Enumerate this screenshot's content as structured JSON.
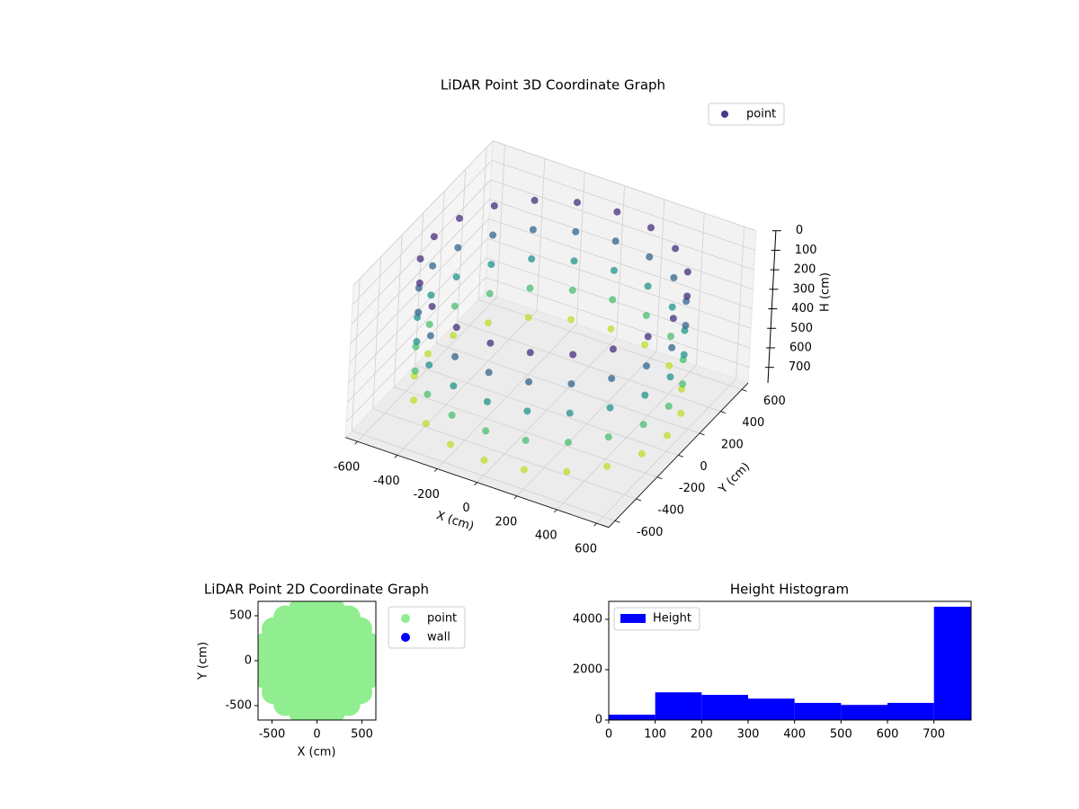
{
  "chart_data": [
    {
      "type": "scatter3d",
      "title": "LiDAR Point 3D Coordinate Graph",
      "xlabel": "X (cm)",
      "ylabel": "Y (cm)",
      "zlabel": "H (cm)",
      "colormap": "viridis",
      "legend": "upper right",
      "xlim": [
        -660,
        660
      ],
      "ylim": [
        -660,
        660
      ],
      "zlim": [
        0,
        780
      ],
      "z_inverted": true,
      "xticks": [
        -600,
        -400,
        -200,
        0,
        200,
        400,
        600
      ],
      "yticks": [
        -600,
        -400,
        -200,
        0,
        200,
        400,
        600
      ],
      "zticks": [
        0,
        100,
        200,
        300,
        400,
        500,
        600,
        700
      ],
      "series": [
        {
          "name": "point",
          "color": "#433e85",
          "x": [
            600,
            571,
            485,
            353,
            185,
            0,
            -185,
            -353,
            -485,
            -571,
            -600,
            -571,
            -485,
            -353,
            -185,
            0,
            185,
            353,
            485,
            571,
            600,
            571,
            485,
            353,
            185,
            0,
            -185,
            -353,
            -485,
            -571,
            -600,
            -571,
            -485,
            -353,
            -185,
            0,
            185,
            353,
            485,
            571,
            600,
            571,
            485,
            353,
            185,
            0,
            -185,
            -353,
            -485,
            -571,
            -600,
            -571,
            -485,
            -353,
            -185,
            0,
            185,
            353,
            485,
            571,
            600,
            571,
            485,
            353,
            185,
            0,
            -185,
            -353,
            -485,
            -571,
            -600,
            -571,
            -485,
            -353,
            -185,
            0,
            185,
            353,
            485,
            571,
            600,
            571,
            485,
            353,
            185,
            0,
            -185,
            -353,
            -485,
            -571,
            -600,
            -571,
            -485,
            -353,
            -185,
            0,
            185,
            353,
            485,
            571
          ],
          "y": [
            0,
            185,
            353,
            485,
            571,
            600,
            571,
            485,
            353,
            185,
            0,
            -185,
            -353,
            -485,
            -571,
            -600,
            -571,
            -485,
            -353,
            -185,
            0,
            185,
            353,
            485,
            571,
            600,
            571,
            485,
            353,
            185,
            0,
            -185,
            -353,
            -485,
            -571,
            -600,
            -571,
            -485,
            -353,
            -185,
            0,
            185,
            353,
            485,
            571,
            600,
            571,
            485,
            353,
            185,
            0,
            -185,
            -353,
            -485,
            -571,
            -600,
            -571,
            -485,
            -353,
            -185,
            0,
            185,
            353,
            485,
            571,
            600,
            571,
            485,
            353,
            185,
            0,
            -185,
            -353,
            -485,
            -571,
            -600,
            -571,
            -485,
            -353,
            -185,
            0,
            185,
            353,
            485,
            571,
            600,
            571,
            485,
            353,
            185,
            0,
            -185,
            -353,
            -485,
            -571,
            -600,
            -571,
            -485,
            -353,
            -185
          ],
          "z": [
            100,
            100,
            100,
            100,
            100,
            100,
            100,
            100,
            100,
            100,
            100,
            100,
            100,
            100,
            100,
            100,
            100,
            100,
            100,
            100,
            250,
            250,
            250,
            250,
            250,
            250,
            250,
            250,
            250,
            250,
            250,
            250,
            250,
            250,
            250,
            250,
            250,
            250,
            250,
            250,
            400,
            400,
            400,
            400,
            400,
            400,
            400,
            400,
            400,
            400,
            400,
            400,
            400,
            400,
            400,
            400,
            400,
            400,
            400,
            400,
            550,
            550,
            550,
            550,
            550,
            550,
            550,
            550,
            550,
            550,
            550,
            550,
            550,
            550,
            550,
            550,
            550,
            550,
            550,
            550,
            700,
            700,
            700,
            700,
            700,
            700,
            700,
            700,
            700,
            700,
            700,
            700,
            700,
            700,
            700,
            700,
            700,
            700,
            700,
            700
          ]
        }
      ]
    },
    {
      "type": "scatter",
      "title": "LiDAR Point 2D Coordinate Graph",
      "xlabel": "X (cm)",
      "ylabel": "Y (cm)",
      "legend": "outside right",
      "xlim": [
        -655,
        655
      ],
      "ylim": [
        -660,
        660
      ],
      "xticks": [
        -500,
        0,
        500
      ],
      "yticks": [
        -500,
        0,
        500
      ],
      "series": [
        {
          "name": "point",
          "color": "#90ee90",
          "x": [
            600,
            571,
            485,
            353,
            185,
            0,
            -185,
            -353,
            -485,
            -571,
            -600,
            -571,
            -485,
            -353,
            -185,
            0,
            185,
            353,
            485,
            571,
            400,
            381,
            323,
            235,
            123,
            0,
            -123,
            -235,
            -323,
            -381,
            -400,
            -381,
            -323,
            -235,
            -123,
            0,
            123,
            235,
            323,
            381,
            200,
            162,
            62,
            -62,
            -162,
            -200,
            -162,
            -62,
            62,
            162,
            0
          ],
          "y": [
            0,
            185,
            353,
            485,
            571,
            600,
            571,
            485,
            353,
            185,
            0,
            -185,
            -353,
            -485,
            -571,
            -600,
            -571,
            -485,
            -353,
            -185,
            0,
            123,
            235,
            323,
            381,
            400,
            381,
            323,
            235,
            123,
            0,
            -123,
            -235,
            -323,
            -381,
            -400,
            -381,
            -323,
            -235,
            -123,
            0,
            118,
            190,
            190,
            118,
            0,
            -118,
            -190,
            -190,
            -118,
            0
          ]
        },
        {
          "name": "wall",
          "color": "#0000ff",
          "x": [],
          "y": []
        }
      ]
    },
    {
      "type": "histogram",
      "title": "Height Histogram",
      "legend": "upper left",
      "bins": [
        0,
        100,
        200,
        300,
        400,
        500,
        600,
        700,
        780
      ],
      "xlim": [
        0,
        780
      ],
      "ylim": [
        0,
        4714
      ],
      "xticks": [
        0,
        100,
        200,
        300,
        400,
        500,
        600,
        700
      ],
      "yticks": [
        0,
        2000,
        4000
      ],
      "series": [
        {
          "name": "Height",
          "color": "#0000ff",
          "values": [
            210,
            1100,
            1000,
            850,
            680,
            600,
            680,
            4500
          ]
        }
      ]
    }
  ]
}
